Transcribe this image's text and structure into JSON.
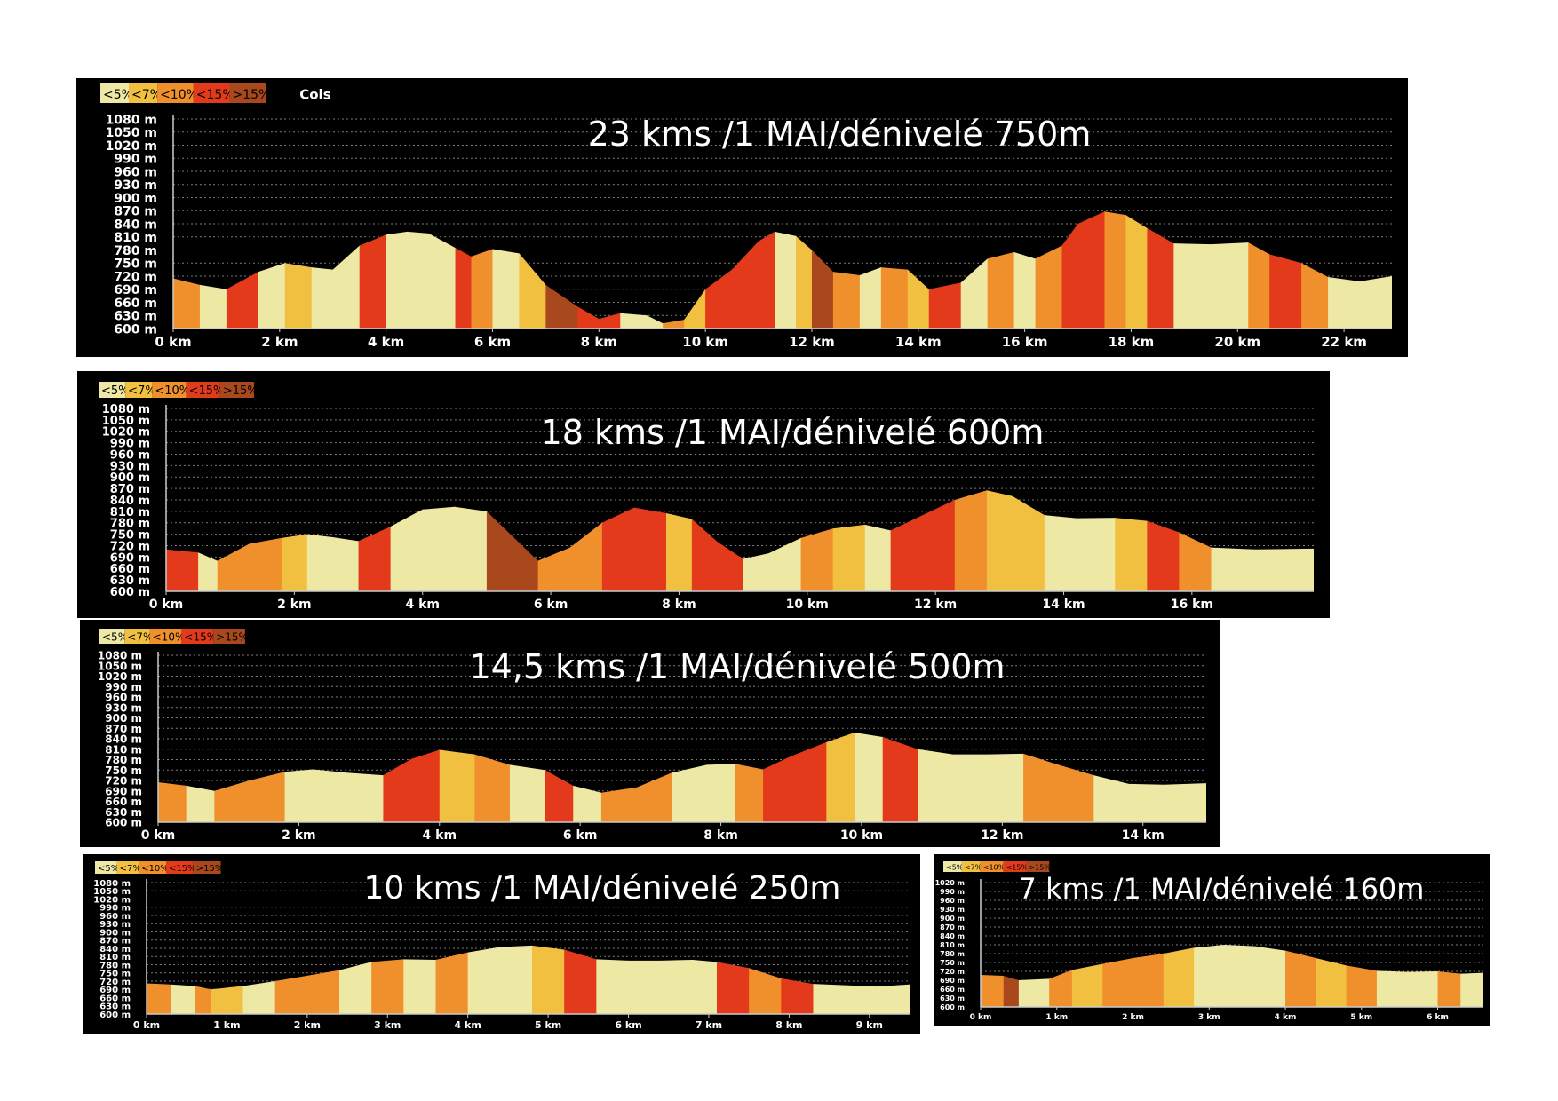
{
  "colors": {
    "lt5": "#ede8a4",
    "lt7": "#f2c040",
    "lt10": "#f0902c",
    "lt15": "#e43a1c",
    "gt15": "#a8481c"
  },
  "chart_data": [
    {
      "type": "area",
      "title": "23 kms /1 MAI/dénivelé 750m",
      "legend": [
        "<5%",
        "<7%",
        "<10%",
        "<15%",
        ">15%"
      ],
      "legend_extra": "Cols",
      "yticks": [
        1080,
        1050,
        1020,
        990,
        960,
        930,
        900,
        870,
        840,
        810,
        780,
        750,
        720,
        690,
        660,
        630,
        600
      ],
      "ytick_unit": "m",
      "ylim": [
        600,
        1080
      ],
      "xticks": [
        0,
        2,
        4,
        6,
        8,
        10,
        12,
        14,
        16,
        18,
        20,
        22
      ],
      "xtick_unit": "km",
      "xlim": [
        0,
        22.9
      ],
      "x": [
        0,
        0.5,
        1.0,
        1.6,
        2.1,
        2.6,
        3.0,
        3.5,
        4.0,
        4.4,
        4.8,
        5.3,
        5.6,
        6.0,
        6.5,
        7.0,
        7.6,
        8.0,
        8.4,
        8.9,
        9.2,
        9.6,
        10.0,
        10.5,
        11.0,
        11.3,
        11.7,
        12.0,
        12.4,
        12.9,
        13.3,
        13.8,
        14.2,
        14.8,
        15.3,
        15.8,
        16.2,
        16.7,
        17.0,
        17.5,
        17.9,
        18.3,
        18.8,
        19.5,
        20.2,
        20.6,
        21.2,
        21.7,
        22.3,
        22.9
      ],
      "y": [
        715,
        700,
        690,
        730,
        750,
        740,
        735,
        790,
        815,
        822,
        818,
        785,
        765,
        782,
        772,
        700,
        650,
        622,
        635,
        630,
        612,
        620,
        690,
        735,
        800,
        822,
        812,
        780,
        730,
        722,
        740,
        735,
        690,
        705,
        760,
        775,
        760,
        790,
        840,
        868,
        860,
        830,
        795,
        793,
        797,
        770,
        750,
        718,
        708,
        720
      ],
      "slopes": [
        "lt10",
        "lt5",
        "lt15",
        "lt5",
        "lt7",
        "lt5",
        "lt5",
        "lt15",
        "lt5",
        "lt5",
        "lt5",
        "lt15",
        "lt10",
        "lt5",
        "lt7",
        "gt15",
        "lt15",
        "lt15",
        "lt5",
        "lt5",
        "lt10",
        "lt7",
        "lt15",
        "lt15",
        "lt15",
        "lt5",
        "lt7",
        "gt15",
        "lt10",
        "lt5",
        "lt10",
        "lt7",
        "lt15",
        "lt5",
        "lt10",
        "lt5",
        "lt10",
        "lt15",
        "lt15",
        "lt10",
        "lt7",
        "lt15",
        "lt5",
        "lt5",
        "lt10",
        "lt15",
        "lt10",
        "lt5",
        "lt5"
      ]
    },
    {
      "type": "area",
      "title": "18 kms /1 MAI/dénivelé 600m",
      "legend": [
        "<5%",
        "<7%",
        "<10%",
        "<15%",
        ">15%"
      ],
      "yticks": [
        1080,
        1050,
        1020,
        990,
        960,
        930,
        900,
        870,
        840,
        810,
        780,
        750,
        720,
        690,
        660,
        630,
        600
      ],
      "ytick_unit": "m",
      "ylim": [
        600,
        1080
      ],
      "xticks": [
        0,
        2,
        4,
        6,
        8,
        10,
        12,
        14,
        16
      ],
      "xtick_unit": "km",
      "xlim": [
        0,
        17.9
      ],
      "x": [
        0,
        0.5,
        0.8,
        1.3,
        1.8,
        2.2,
        2.6,
        3.0,
        3.5,
        4.0,
        4.5,
        5.0,
        5.4,
        5.8,
        6.3,
        6.8,
        7.3,
        7.8,
        8.2,
        8.6,
        9.0,
        9.4,
        9.9,
        10.4,
        10.9,
        11.3,
        11.8,
        12.3,
        12.8,
        13.2,
        13.7,
        14.2,
        14.8,
        15.3,
        15.8,
        16.3,
        17.0,
        17.9
      ],
      "y": [
        710,
        702,
        680,
        725,
        740,
        750,
        742,
        732,
        770,
        815,
        822,
        810,
        745,
        680,
        715,
        780,
        820,
        805,
        790,
        730,
        685,
        700,
        740,
        765,
        775,
        760,
        800,
        840,
        865,
        850,
        800,
        792,
        793,
        785,
        755,
        715,
        710,
        712
      ],
      "slopes": [
        "lt15",
        "lt5",
        "lt10",
        "lt10",
        "lt7",
        "lt5",
        "lt5",
        "lt15",
        "lt5",
        "lt5",
        "lt5",
        "gt15",
        "gt15",
        "lt10",
        "lt10",
        "lt15",
        "lt15",
        "lt7",
        "lt15",
        "lt15",
        "lt5",
        "lt5",
        "lt10",
        "lt7",
        "lt5",
        "lt15",
        "lt15",
        "lt10",
        "lt7",
        "lt7",
        "lt5",
        "lt5",
        "lt7",
        "lt15",
        "lt10",
        "lt5",
        "lt5"
      ]
    },
    {
      "type": "area",
      "title": "14,5 kms /1 MAI/dénivelé 500m",
      "legend": [
        "<5%",
        "<7%",
        "<10%",
        "<15%",
        ">15%"
      ],
      "yticks": [
        1080,
        1050,
        1020,
        990,
        960,
        930,
        900,
        870,
        840,
        810,
        780,
        750,
        720,
        690,
        660,
        630,
        600
      ],
      "ytick_unit": "m",
      "ylim": [
        600,
        1080
      ],
      "xticks": [
        0,
        2,
        4,
        6,
        8,
        10,
        12,
        14
      ],
      "xtick_unit": "km",
      "xlim": [
        0,
        14.9
      ],
      "x": [
        0,
        0.4,
        0.8,
        1.3,
        1.8,
        2.2,
        2.7,
        3.2,
        3.6,
        4.0,
        4.5,
        5.0,
        5.5,
        5.9,
        6.3,
        6.8,
        7.3,
        7.8,
        8.2,
        8.6,
        9.0,
        9.5,
        9.9,
        10.3,
        10.8,
        11.3,
        11.8,
        12.3,
        12.8,
        13.3,
        13.8,
        14.3,
        14.9
      ],
      "y": [
        715,
        705,
        690,
        720,
        745,
        752,
        742,
        735,
        782,
        808,
        795,
        765,
        750,
        705,
        685,
        700,
        742,
        765,
        768,
        752,
        790,
        830,
        858,
        845,
        810,
        795,
        795,
        797,
        765,
        735,
        710,
        708,
        712
      ],
      "slopes": [
        "lt10",
        "lt5",
        "lt10",
        "lt10",
        "lt5",
        "lt5",
        "lt5",
        "lt15",
        "lt15",
        "lt7",
        "lt10",
        "lt5",
        "lt15",
        "lt5",
        "lt10",
        "lt10",
        "lt5",
        "lt5",
        "lt10",
        "lt15",
        "lt15",
        "lt7",
        "lt5",
        "lt15",
        "lt5",
        "lt5",
        "lt5",
        "lt10",
        "lt10",
        "lt5",
        "lt5",
        "lt5"
      ]
    },
    {
      "type": "area",
      "title": "10 kms /1 MAI/dénivelé 250m",
      "legend": [
        "<5%",
        "<7%",
        "<10%",
        "<15%",
        ">15%"
      ],
      "yticks": [
        1080,
        1050,
        1020,
        990,
        960,
        930,
        900,
        870,
        840,
        810,
        780,
        750,
        720,
        690,
        660,
        630,
        600
      ],
      "ytick_unit": "m",
      "ylim": [
        600,
        1080
      ],
      "xticks": [
        0,
        1,
        2,
        3,
        4,
        5,
        6,
        7,
        8,
        9
      ],
      "xtick_unit": "km",
      "xlim": [
        0,
        9.5
      ],
      "x": [
        0,
        0.3,
        0.6,
        0.8,
        1.2,
        1.6,
        2.0,
        2.4,
        2.8,
        3.2,
        3.6,
        4.0,
        4.4,
        4.8,
        5.2,
        5.6,
        6.0,
        6.4,
        6.8,
        7.1,
        7.5,
        7.9,
        8.3,
        8.7,
        9.1,
        9.5
      ],
      "y": [
        712,
        708,
        702,
        690,
        702,
        720,
        740,
        760,
        790,
        800,
        798,
        825,
        845,
        850,
        835,
        800,
        795,
        795,
        798,
        790,
        768,
        730,
        710,
        705,
        700,
        708
      ],
      "slopes": [
        "lt10",
        "lt5",
        "lt10",
        "lt7",
        "lt5",
        "lt10",
        "lt10",
        "lt5",
        "lt10",
        "lt5",
        "lt10",
        "lt5",
        "lt5",
        "lt7",
        "lt15",
        "lt5",
        "lt5",
        "lt5",
        "lt5",
        "lt15",
        "lt10",
        "lt15",
        "lt5",
        "lt5",
        "lt5"
      ]
    },
    {
      "type": "area",
      "title": "7 kms /1 MAI/dénivelé 160m",
      "legend": [
        "<5%",
        "<7%",
        "<10%",
        "<15%",
        ">15%"
      ],
      "yticks": [
        1020,
        990,
        960,
        930,
        900,
        870,
        840,
        810,
        780,
        750,
        720,
        690,
        660,
        630,
        600
      ],
      "ytick_unit": "m",
      "ylim": [
        600,
        1020
      ],
      "xticks": [
        0,
        1,
        2,
        3,
        4,
        5,
        6
      ],
      "xtick_unit": "km",
      "xlim": [
        0,
        6.6
      ],
      "x": [
        0,
        0.3,
        0.5,
        0.9,
        1.2,
        1.6,
        2.0,
        2.4,
        2.8,
        3.2,
        3.6,
        4.0,
        4.4,
        4.8,
        5.2,
        5.6,
        6.0,
        6.3,
        6.6
      ],
      "y": [
        708,
        705,
        690,
        695,
        725,
        745,
        765,
        780,
        800,
        810,
        805,
        790,
        765,
        740,
        722,
        718,
        720,
        712,
        715
      ],
      "slopes": [
        "lt10",
        "gt15",
        "lt5",
        "lt10",
        "lt7",
        "lt10",
        "lt10",
        "lt7",
        "lt5",
        "lt5",
        "lt5",
        "lt10",
        "lt7",
        "lt10",
        "lt5",
        "lt5",
        "lt10",
        "lt5"
      ]
    }
  ]
}
